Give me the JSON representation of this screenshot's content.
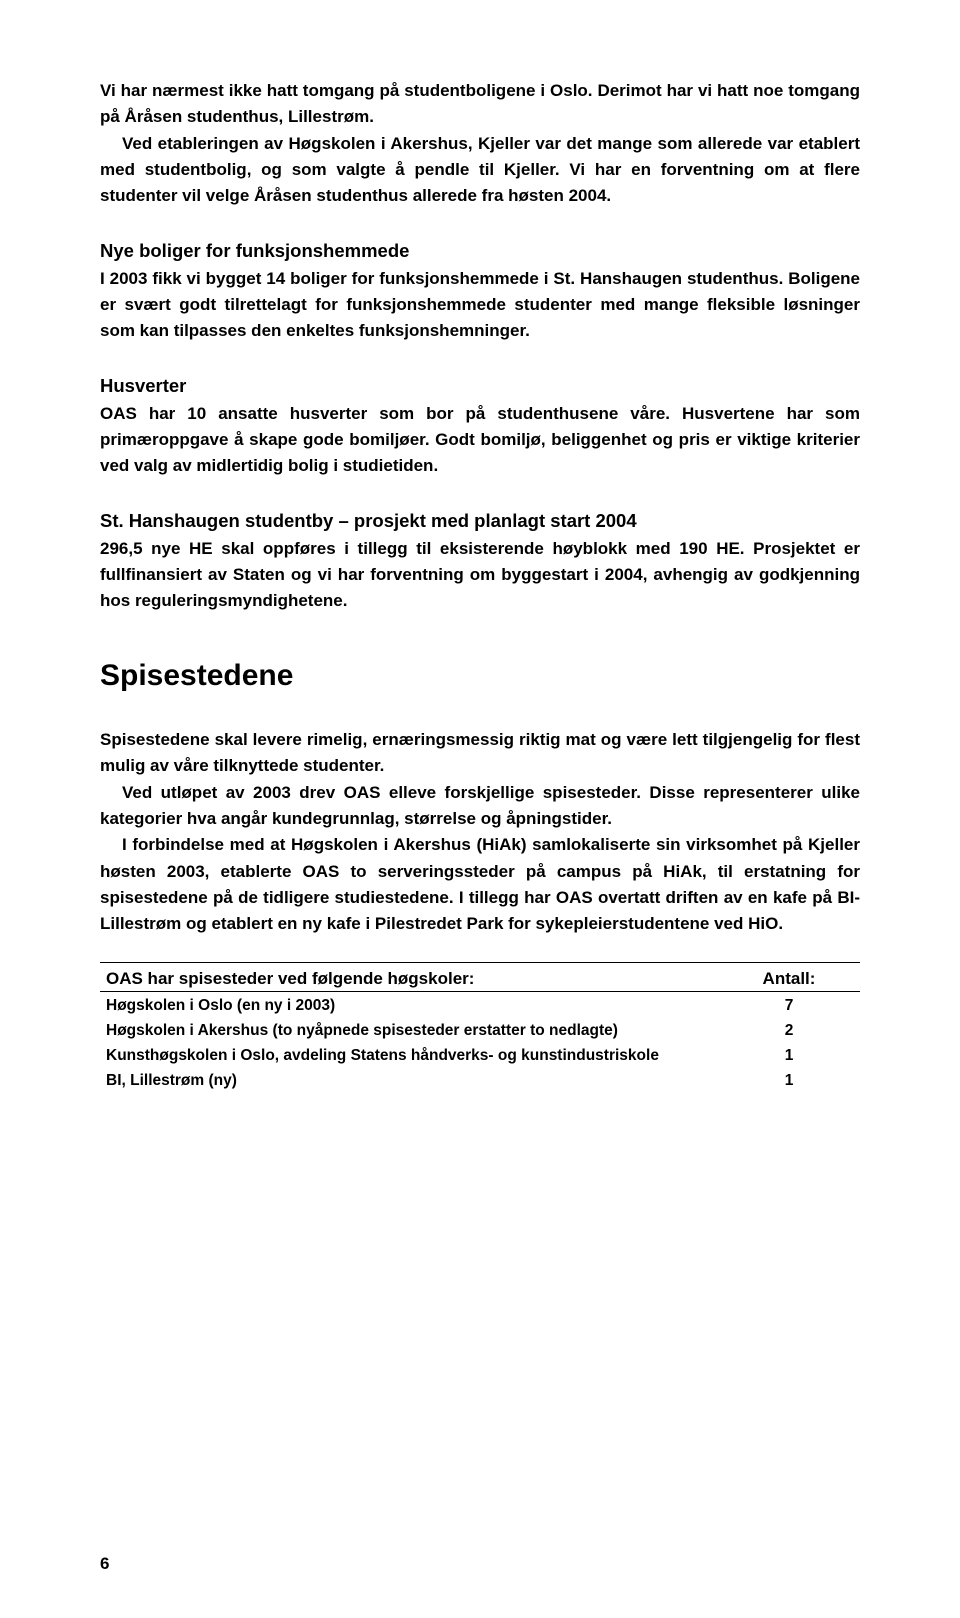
{
  "intro": {
    "p1": "Vi har nærmest ikke hatt tomgang på studentboligene i Oslo. Derimot har vi hatt noe tomgang på Åråsen studenthus, Lillestrøm.",
    "p2": "Ved etableringen av Høgskolen i Akershus, Kjeller var det mange som allerede var etablert med studentbolig, og som valgte å pendle til Kjeller. Vi har en forventning om at flere studenter vil velge Åråsen studenthus allerede fra høsten 2004."
  },
  "sec1": {
    "heading": "Nye boliger for funksjonshemmede",
    "body": "I 2003 fikk vi bygget 14 boliger for funksjonshemmede i St. Hanshaugen studenthus. Boligene er svært godt tilrettelagt for funksjonshemmede studenter med mange fleksible løsninger som kan tilpasses den enkeltes funksjonshemninger."
  },
  "sec2": {
    "heading": "Husverter",
    "body": "OAS har 10 ansatte husverter som bor på studenthusene våre. Husvertene har som primæroppgave å skape gode bomiljøer. Godt bomiljø, beliggenhet og pris er viktige kriterier ved valg av midlertidig bolig i studietiden."
  },
  "sec3": {
    "heading": "St. Hanshaugen studentby – prosjekt med planlagt start 2004",
    "body": "296,5 nye HE skal oppføres i tillegg til eksisterende høyblokk med 190 HE. Prosjektet er fullfinansiert av Staten og vi har forventning om byggestart i 2004, avhengig av godkjenning hos reguleringsmyndighetene."
  },
  "spisestedene": {
    "title": "Spisestedene",
    "p1": "Spisestedene skal levere rimelig, ernæringsmessig riktig mat og være lett tilgjengelig for flest mulig av våre tilknyttede studenter.",
    "p2": "Ved utløpet av 2003 drev OAS elleve forskjellige spisesteder. Disse representerer ulike kategorier hva angår kundegrunnlag, størrelse og åpningstider.",
    "p3": "I forbindelse med at Høgskolen i Akershus (HiAk) samlokaliserte sin virksomhet på Kjeller høsten 2003, etablerte OAS to serveringssteder på campus på HiAk, til erstatning for spisestedene på de tidligere studiestedene. I tillegg har OAS overtatt driften av en kafe på BI-Lillestrøm og etablert en ny kafe i Pilestredet Park for sykepleierstudentene ved HiO."
  },
  "table": {
    "header_left": "OAS har spisesteder ved følgende høgskoler:",
    "header_right": "Antall:",
    "rows": [
      {
        "label": "Høgskolen i Oslo (en ny i 2003)",
        "value": "7"
      },
      {
        "label": "Høgskolen i Akershus (to nyåpnede spisesteder erstatter to nedlagte)",
        "value": "2"
      },
      {
        "label": "Kunsthøgskolen i Oslo, avdeling Statens håndverks- og kunstindustriskole",
        "value": "1"
      },
      {
        "label": "BI, Lillestrøm (ny)",
        "value": "1"
      }
    ]
  },
  "page_number": "6"
}
